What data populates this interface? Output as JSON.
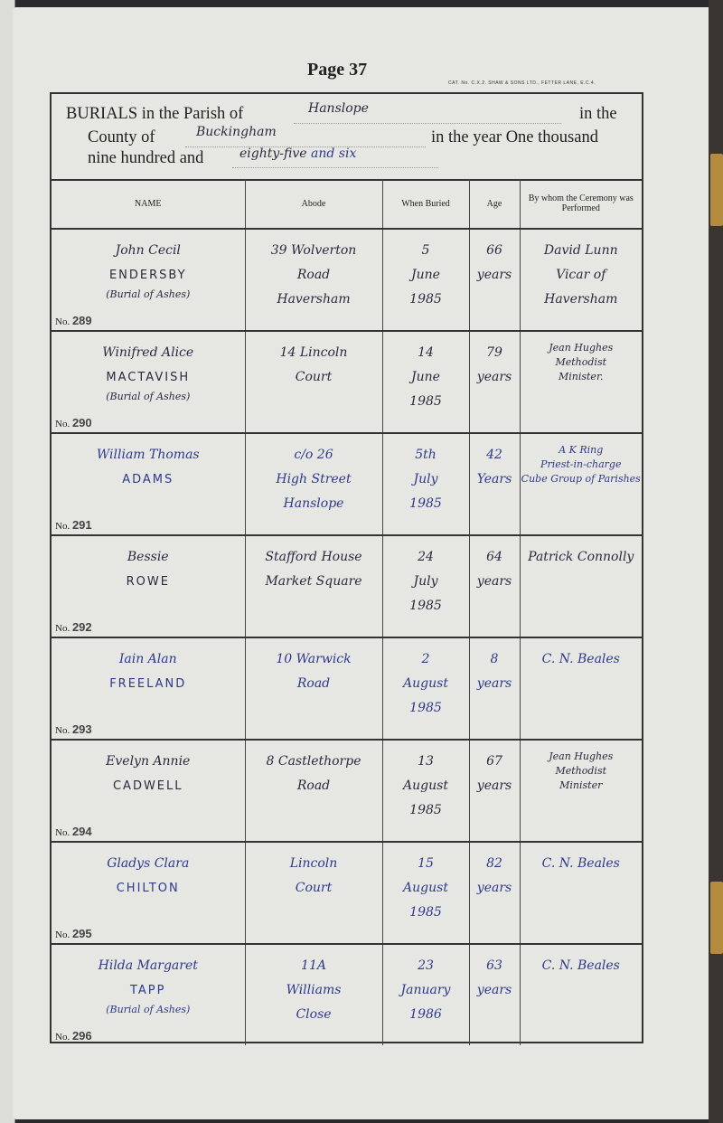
{
  "page_title": "Page 37",
  "catalogue": "CAT. No. C.X.2.  SHAW & SONS LTD., FETTER LANE, E.C.4.",
  "header": {
    "line1_prefix": "BURIALS in the Parish of",
    "parish": "Hanslope",
    "line1_suffix": "in the",
    "line2_prefix": "County of",
    "county": "Buckingham",
    "line2_suffix": "in the year One thousand",
    "line3_prefix": "nine hundred and",
    "year_words": "eighty-five",
    "year_words_added": "and six"
  },
  "columns": [
    "NAME",
    "Abode",
    "When Buried",
    "Age",
    "By whom the Ceremony was Performed"
  ],
  "no_prefix": "No.",
  "entries": [
    {
      "no": "289",
      "forenames": "John Cecil",
      "surname": "ENDERSBY",
      "note": "(Burial of Ashes)",
      "abode": [
        "39 Wolverton",
        "Road",
        "Haversham"
      ],
      "buried": [
        "5",
        "June",
        "1985"
      ],
      "age": [
        "66",
        "years"
      ],
      "officiant": [
        "David Lunn",
        "Vicar of Haversham"
      ],
      "ink": "black"
    },
    {
      "no": "290",
      "forenames": "Winifred Alice",
      "surname": "MACTAVISH",
      "note": "(Burial of Ashes)",
      "abode": [
        "14 Lincoln",
        "Court"
      ],
      "buried": [
        "14",
        "June",
        "1985"
      ],
      "age": [
        "79",
        "years"
      ],
      "officiant": [
        "Jean Hughes",
        "Methodist",
        "Minister."
      ],
      "ink": "black"
    },
    {
      "no": "291",
      "forenames": "William Thomas",
      "surname": "ADAMS",
      "note": "",
      "abode": [
        "c/o 26",
        "High Street",
        "Hanslope"
      ],
      "buried": [
        "5th",
        "July",
        "1985"
      ],
      "age": [
        "42",
        "Years"
      ],
      "officiant": [
        "A K Ring",
        "Priest-in-charge",
        "Cube Group of Parishes"
      ],
      "ink": "blue"
    },
    {
      "no": "292",
      "forenames": "Bessie",
      "surname": "ROWE",
      "note": "",
      "abode": [
        "Stafford House",
        "Market Square"
      ],
      "buried": [
        "24",
        "July",
        "1985"
      ],
      "age": [
        "64",
        "years"
      ],
      "officiant": [
        "Patrick Connolly"
      ],
      "ink": "black"
    },
    {
      "no": "293",
      "forenames": "Iain Alan",
      "surname": "FREELAND",
      "note": "",
      "abode": [
        "10 Warwick",
        "Road"
      ],
      "buried": [
        "2",
        "August",
        "1985"
      ],
      "age": [
        "8",
        "years"
      ],
      "officiant": [
        "C. N. Beales"
      ],
      "ink": "blue"
    },
    {
      "no": "294",
      "forenames": "Evelyn Annie",
      "surname": "CADWELL",
      "note": "",
      "abode": [
        "8 Castlethorpe",
        "Road"
      ],
      "buried": [
        "13",
        "August",
        "1985"
      ],
      "age": [
        "67",
        "years"
      ],
      "officiant": [
        "Jean Hughes",
        "Methodist",
        "Minister"
      ],
      "ink": "black"
    },
    {
      "no": "295",
      "forenames": "Gladys Clara",
      "surname": "CHILTON",
      "note": "",
      "abode": [
        "Lincoln",
        "Court"
      ],
      "buried": [
        "15",
        "August",
        "1985"
      ],
      "age": [
        "82",
        "years"
      ],
      "officiant": [
        "C. N. Beales"
      ],
      "ink": "blue"
    },
    {
      "no": "296",
      "forenames": "Hilda Margaret",
      "surname": "TAPP",
      "note": "(Burial of Ashes)",
      "abode": [
        "11A",
        "Williams",
        "Close"
      ],
      "buried": [
        "23",
        "January",
        "1986"
      ],
      "age": [
        "63",
        "years"
      ],
      "officiant": [
        "C. N. Beales"
      ],
      "ink": "blue"
    }
  ]
}
